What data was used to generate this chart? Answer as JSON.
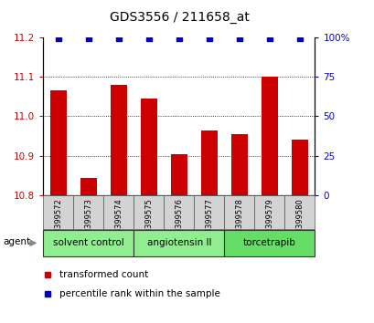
{
  "title": "GDS3556 / 211658_at",
  "samples": [
    "GSM399572",
    "GSM399573",
    "GSM399574",
    "GSM399575",
    "GSM399576",
    "GSM399577",
    "GSM399578",
    "GSM399579",
    "GSM399580"
  ],
  "bar_values": [
    11.065,
    10.845,
    11.08,
    11.045,
    10.905,
    10.965,
    10.955,
    11.1,
    10.94
  ],
  "percentile_values": [
    99,
    99,
    99,
    99,
    99,
    99,
    99,
    99,
    99
  ],
  "bar_color": "#cc0000",
  "percentile_color": "#0000cc",
  "ylim_left": [
    10.8,
    11.2
  ],
  "ylim_right": [
    0,
    100
  ],
  "yticks_left": [
    10.8,
    10.9,
    11.0,
    11.1,
    11.2
  ],
  "yticks_right": [
    0,
    25,
    50,
    75,
    100
  ],
  "group_configs": [
    {
      "start": 0,
      "end": 2,
      "label": "solvent control",
      "color": "#90ee90"
    },
    {
      "start": 3,
      "end": 5,
      "label": "angiotensin II",
      "color": "#90ee90"
    },
    {
      "start": 6,
      "end": 8,
      "label": "torcetrapib",
      "color": "#66dd66"
    }
  ],
  "agent_label": "agent",
  "legend_items": [
    {
      "label": "transformed count",
      "color": "#cc0000"
    },
    {
      "label": "percentile rank within the sample",
      "color": "#0000cc"
    }
  ],
  "bar_width": 0.55,
  "bg_plot": "#ffffff",
  "sample_bg": "#d3d3d3",
  "ytick_right_labels": [
    "0",
    "25",
    "50",
    "75",
    "100%"
  ]
}
